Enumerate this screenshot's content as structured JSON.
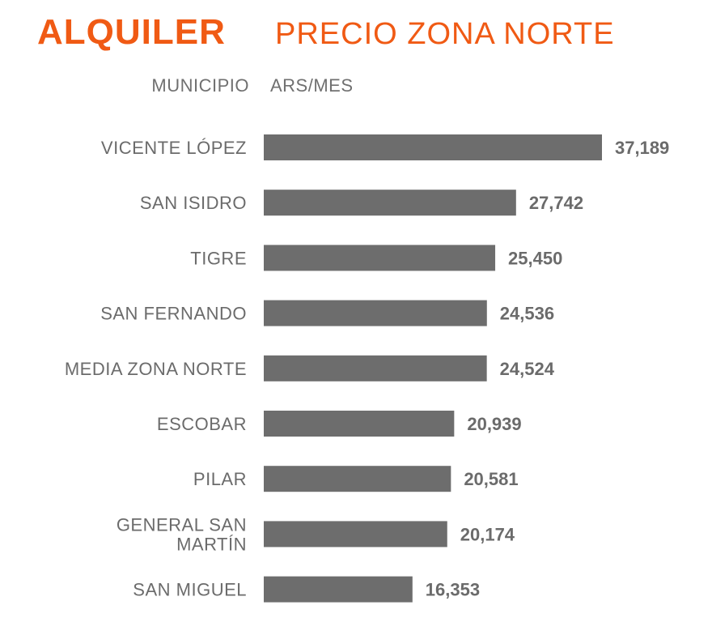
{
  "colors": {
    "accent": "#f05a14",
    "bar": "#6d6d6d",
    "text": "#6b6b6b"
  },
  "header": {
    "title": "ALQUILER",
    "subtitle": "PRECIO ZONA NORTE",
    "col_category": "MUNICIPIO",
    "col_value": "ARS/MES"
  },
  "chart_data": {
    "type": "bar",
    "orientation": "horizontal",
    "title": "ALQUILER",
    "subtitle": "PRECIO ZONA NORTE",
    "xlabel": "ARS/MES",
    "ylabel": "MUNICIPIO",
    "categories": [
      "VICENTE LÓPEZ",
      "SAN ISIDRO",
      "TIGRE",
      "SAN FERNANDO",
      "MEDIA ZONA NORTE",
      "ESCOBAR",
      "PILAR",
      "GENERAL SAN MARTÍN",
      "SAN MIGUEL"
    ],
    "values": [
      37189,
      27742,
      25450,
      24536,
      24524,
      20939,
      20581,
      20174,
      16353
    ],
    "value_labels": [
      "37,189",
      "27,742",
      "25,450",
      "24,536",
      "24,524",
      "20,939",
      "20,581",
      "20,174",
      "16,353"
    ],
    "xlim": [
      0,
      37189
    ],
    "grid": false,
    "legend": "none"
  }
}
